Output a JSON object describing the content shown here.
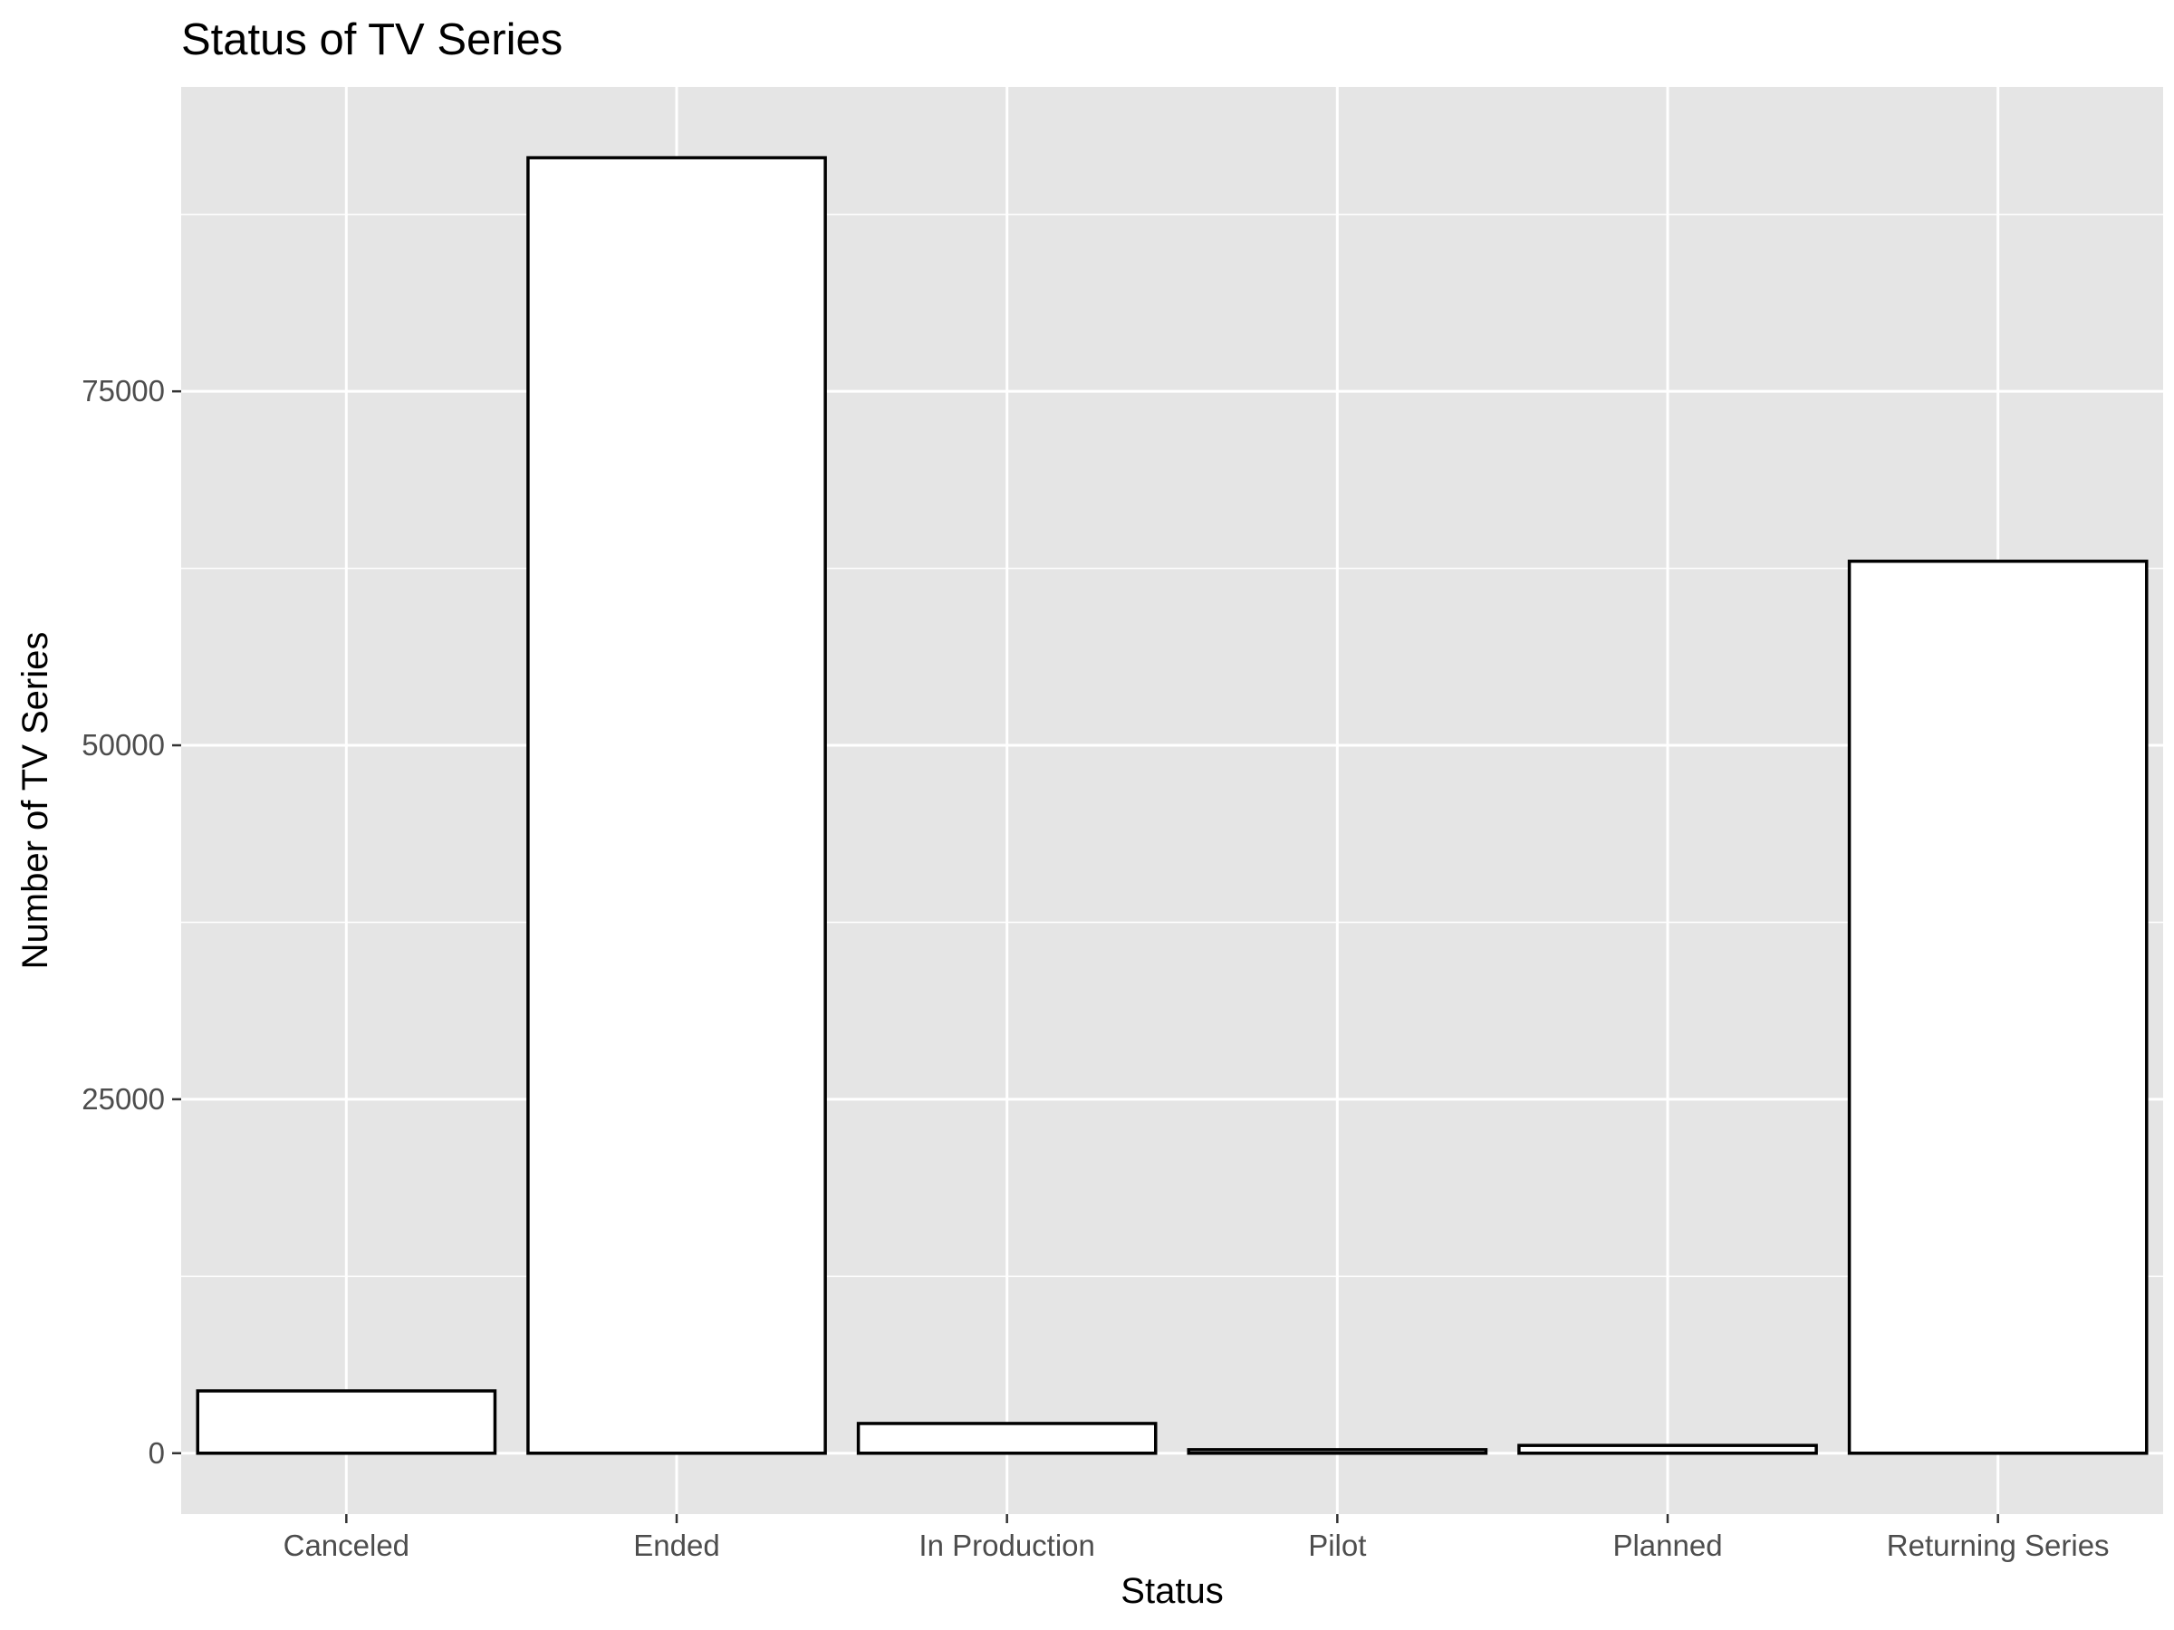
{
  "chart_data": {
    "type": "bar",
    "title": "Status of TV Series",
    "xlabel": "Status",
    "ylabel": "Number of TV Series",
    "categories": [
      "Canceled",
      "Ended",
      "In Production",
      "Pilot",
      "Planned",
      "Returning Series"
    ],
    "values": [
      4400,
      91500,
      2100,
      250,
      550,
      63000
    ],
    "ylim": [
      -4300,
      96500
    ],
    "yticks": [
      0,
      25000,
      50000,
      75000
    ],
    "ytick_labels": [
      "0",
      "25000",
      "50000",
      "75000"
    ],
    "grid": true,
    "legend": "none",
    "colors": {
      "panel": "#e5e5e5",
      "grid": "#ffffff",
      "bar_fill": "#ffffff",
      "bar_outline": "#000000",
      "tick_text": "#4d4d4d",
      "tick_mark": "#333333"
    }
  }
}
